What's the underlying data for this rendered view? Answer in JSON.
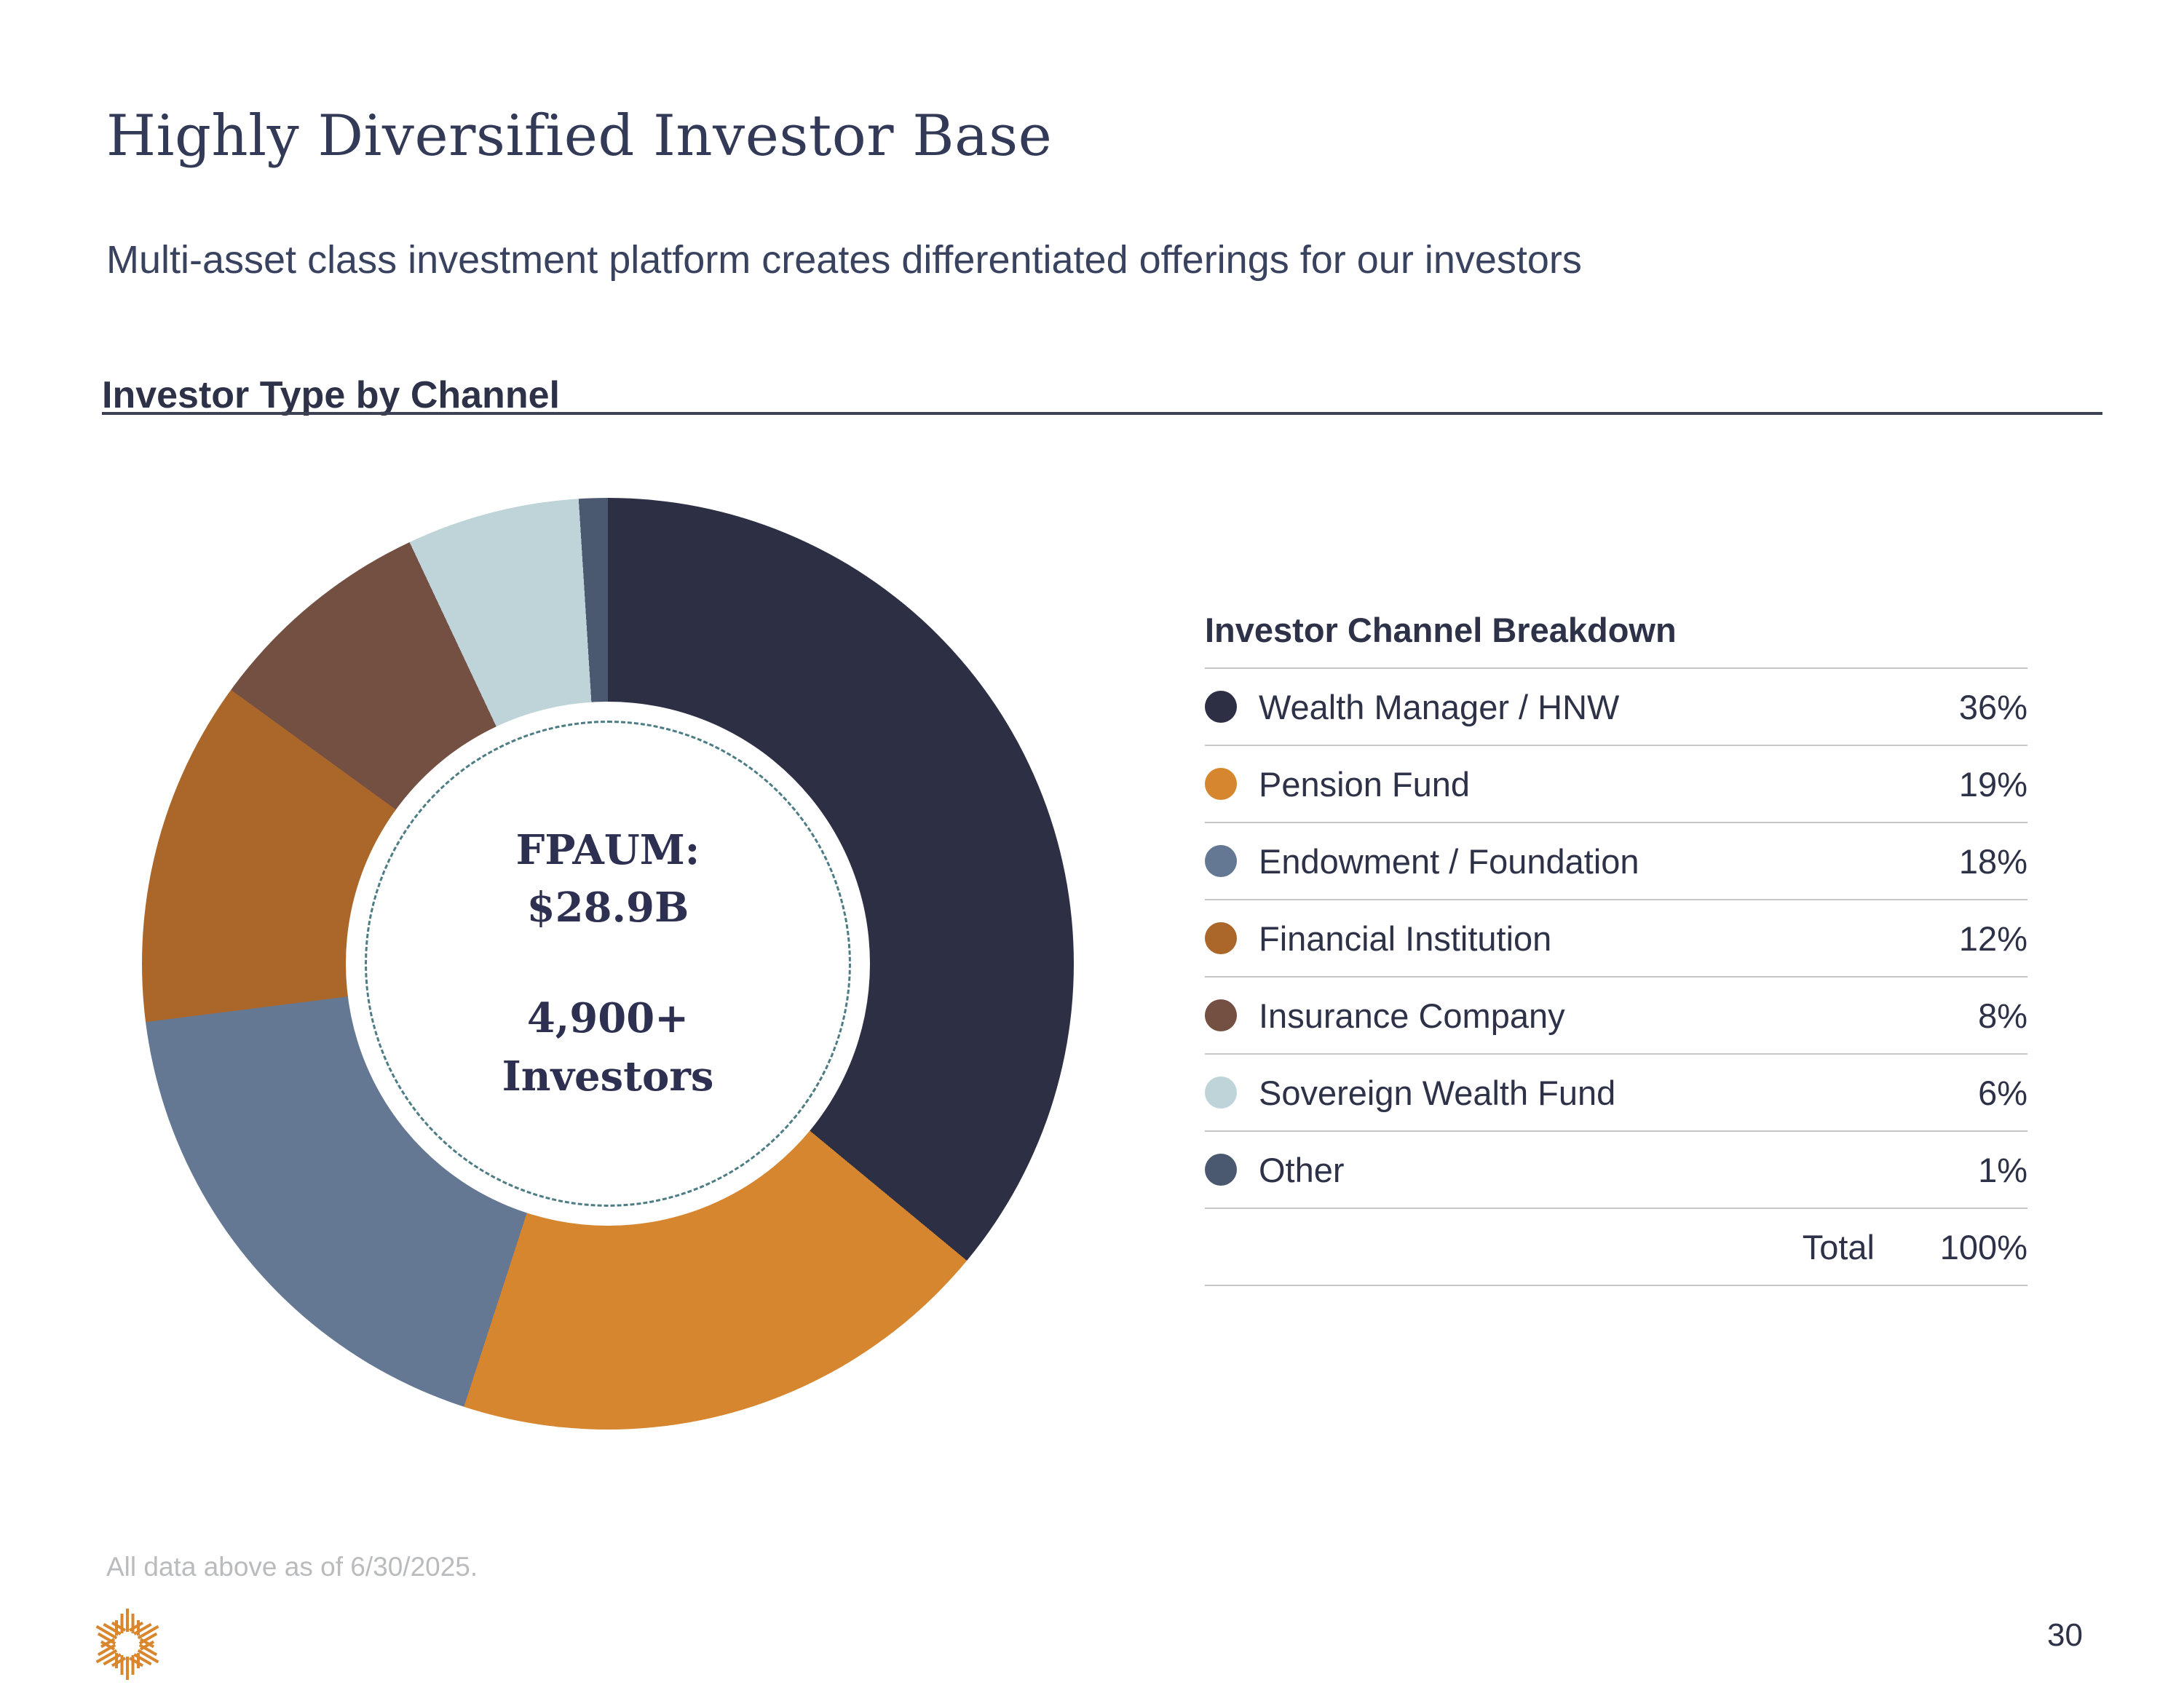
{
  "header": {
    "title": "Highly Diversified Investor Base",
    "subtitle": "Multi-asset class investment platform creates differentiated offerings for our investors"
  },
  "section": {
    "title": "Investor Type by Channel"
  },
  "donut_center": {
    "line1": "FPAUM:",
    "line2": "$28.9B",
    "line3": "4,900+",
    "line4": "Investors"
  },
  "legend": {
    "title": "Investor Channel Breakdown",
    "total_label": "Total",
    "total_value": "100%"
  },
  "chart_data": {
    "type": "pie",
    "donut": true,
    "title": "Investor Type by Channel",
    "categories": [
      "Wealth Manager / HNW",
      "Pension Fund",
      "Endowment / Foundation",
      "Financial Institution",
      "Insurance Company",
      "Sovereign Wealth Fund",
      "Other"
    ],
    "values": [
      36,
      19,
      18,
      12,
      8,
      6,
      1
    ],
    "unit": "%",
    "colors": [
      "#2d2f45",
      "#d6862e",
      "#647793",
      "#ab672a",
      "#745043",
      "#bed4d8",
      "#4b5970"
    ],
    "start_angle_deg": 0,
    "direction": "clockwise",
    "legend_position": "right",
    "center_labels": [
      "FPAUM:",
      "$28.9B",
      "4,900+",
      "Investors"
    ],
    "total": 100
  },
  "footer": {
    "note": "All data above as of 6/30/2025.",
    "page_number": "30"
  },
  "style": {
    "accent_orange": "#d9872f",
    "navy_text": "#2e3248",
    "dashed_ring": "#4d7d84",
    "divider_grey": "#c6c6c6"
  }
}
